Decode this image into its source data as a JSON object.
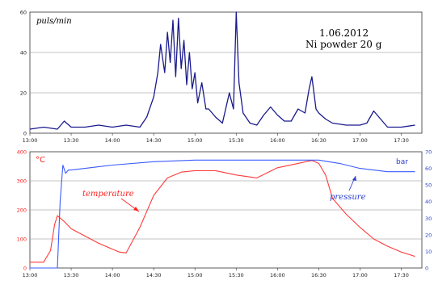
{
  "chart_data": [
    {
      "type": "line",
      "ylabel": "puls/min",
      "ylim": [
        0,
        60
      ],
      "yticks": [
        0,
        20,
        40,
        60
      ],
      "xlim": [
        "13:00",
        "17:45"
      ],
      "xticks": [
        "13:00",
        "13:30",
        "14:00",
        "14:30",
        "15:00",
        "15:30",
        "16:00",
        "16:30",
        "17:00",
        "17:30"
      ],
      "grid": "horizontal",
      "annotations": [
        "1.06.2012",
        "Ni powder 20 g"
      ],
      "series_color": "#1a1a8c",
      "series": [
        {
          "x": [
            "13:00",
            "13:10",
            "13:20",
            "13:25",
            "13:30",
            "13:40",
            "13:50",
            "14:00",
            "14:10",
            "14:20",
            "14:25",
            "14:30",
            "14:33",
            "14:35",
            "14:38",
            "14:40",
            "14:42",
            "14:44",
            "14:46",
            "14:48",
            "14:50",
            "14:52",
            "14:54",
            "14:56",
            "14:58",
            "15:00",
            "15:02",
            "15:05",
            "15:08",
            "15:10",
            "15:15",
            "15:20",
            "15:25",
            "15:28",
            "15:30",
            "15:32",
            "15:35",
            "15:40",
            "15:45",
            "15:50",
            "15:55",
            "16:00",
            "16:05",
            "16:10",
            "16:15",
            "16:20",
            "16:23",
            "16:25",
            "16:28",
            "16:30",
            "16:35",
            "16:40",
            "16:50",
            "17:00",
            "17:05",
            "17:10",
            "17:20",
            "17:30",
            "17:40"
          ],
          "values": [
            2,
            3,
            2,
            6,
            3,
            3,
            4,
            3,
            4,
            3,
            8,
            18,
            30,
            44,
            30,
            50,
            35,
            56,
            28,
            57,
            32,
            46,
            24,
            40,
            22,
            30,
            15,
            25,
            12,
            12,
            8,
            5,
            20,
            12,
            60,
            25,
            10,
            5,
            4,
            9,
            13,
            9,
            6,
            6,
            12,
            10,
            22,
            28,
            12,
            10,
            7,
            5,
            4,
            4,
            5,
            11,
            3,
            3,
            4
          ]
        }
      ]
    },
    {
      "type": "line",
      "ylabel_left": "°C",
      "ylabel_right": "bar",
      "ylim_left": [
        0,
        400
      ],
      "yticks_left": [
        0,
        100,
        200,
        300,
        400
      ],
      "ylim_right": [
        0,
        70
      ],
      "yticks_right": [
        0,
        10,
        20,
        30,
        40,
        50,
        60,
        70
      ],
      "xlim": [
        "13:00",
        "17:45"
      ],
      "xticks": [
        "13:00",
        "13:30",
        "14:00",
        "14:30",
        "15:00",
        "15:30",
        "16:00",
        "16:30",
        "17:00",
        "17:30"
      ],
      "grid": "horizontal",
      "annotations": [
        "temperature",
        "pressure"
      ],
      "series": [
        {
          "name": "temperature",
          "axis": "left",
          "color": "#ff3b3b",
          "x": [
            "13:00",
            "13:10",
            "13:15",
            "13:18",
            "13:20",
            "13:25",
            "13:30",
            "13:40",
            "13:50",
            "14:00",
            "14:05",
            "14:10",
            "14:20",
            "14:30",
            "14:40",
            "14:50",
            "15:00",
            "15:15",
            "15:30",
            "15:45",
            "16:00",
            "16:15",
            "16:25",
            "16:30",
            "16:35",
            "16:40",
            "16:50",
            "17:00",
            "17:10",
            "17:20",
            "17:30",
            "17:40"
          ],
          "values": [
            20,
            20,
            60,
            150,
            180,
            160,
            135,
            110,
            85,
            65,
            55,
            52,
            140,
            250,
            310,
            330,
            335,
            335,
            320,
            310,
            345,
            360,
            370,
            360,
            320,
            240,
            185,
            140,
            100,
            75,
            55,
            40
          ]
        },
        {
          "name": "pressure",
          "axis": "right",
          "color": "#3a5bff",
          "x": [
            "13:00",
            "13:20",
            "13:22",
            "13:24",
            "13:26",
            "13:28",
            "13:30",
            "13:40",
            "14:00",
            "14:30",
            "15:00",
            "15:30",
            "16:00",
            "16:30",
            "16:45",
            "17:00",
            "17:20",
            "17:40"
          ],
          "values": [
            0,
            0,
            40,
            62,
            57,
            59,
            59,
            60,
            62,
            64,
            65,
            65,
            65,
            65,
            63,
            60,
            58,
            58
          ]
        }
      ]
    }
  ]
}
